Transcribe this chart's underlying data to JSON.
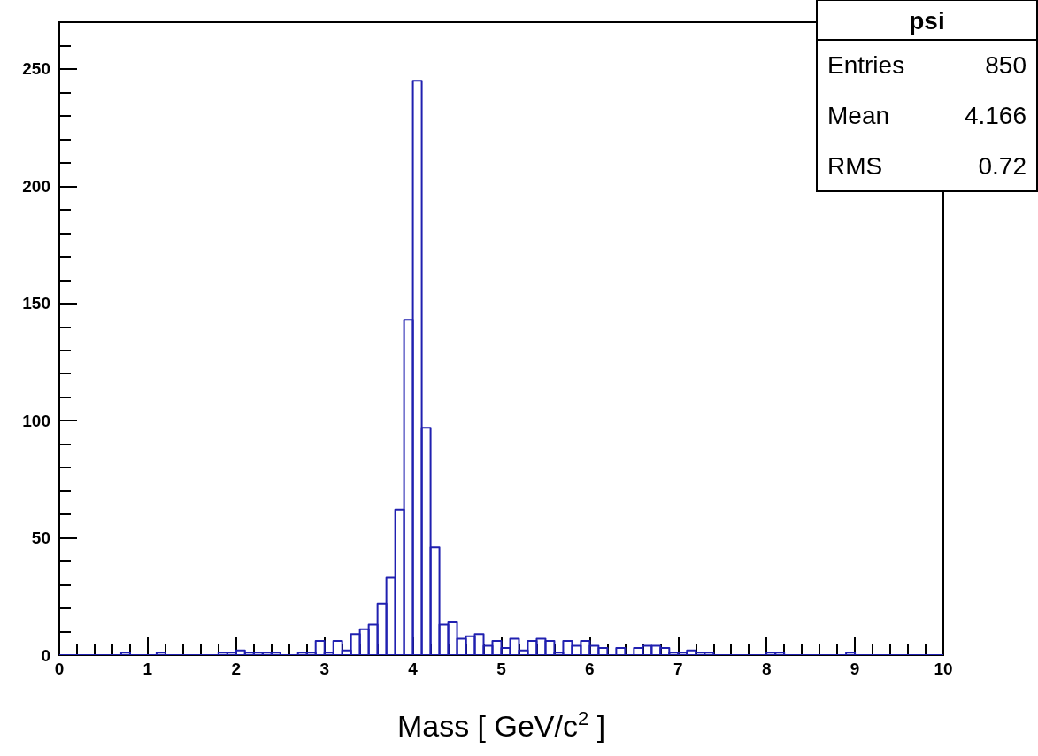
{
  "chart_data": {
    "type": "histogram",
    "xlabel": "Mass [ GeV/c$^{2}$ ]",
    "bins": [
      0,
      0.1,
      0.2,
      0.3,
      0.4,
      0.5,
      0.6,
      0.7,
      0.8,
      0.9,
      1,
      1.1,
      1.2,
      1.3,
      1.4,
      1.5,
      1.6,
      1.7,
      1.8,
      1.9,
      2,
      2.1,
      2.2,
      2.3,
      2.4,
      2.5,
      2.6,
      2.7,
      2.8,
      2.9,
      3,
      3.1,
      3.2,
      3.3,
      3.4,
      3.5,
      3.6,
      3.7,
      3.8,
      3.9,
      4,
      4.1,
      4.2,
      4.3,
      4.4,
      4.5,
      4.6,
      4.7,
      4.8,
      4.9,
      5,
      5.1,
      5.2,
      5.3,
      5.4,
      5.5,
      5.6,
      5.7,
      5.8,
      5.9,
      6,
      6.1,
      6.2,
      6.3,
      6.4,
      6.5,
      6.6,
      6.7,
      6.8,
      6.9,
      7,
      7.1,
      7.2,
      7.3,
      7.4,
      7.5,
      7.6,
      7.7,
      7.8,
      7.9,
      8,
      8.1,
      8.2,
      8.3,
      8.4,
      8.5,
      8.6,
      8.7,
      8.8,
      8.9,
      9,
      9.1,
      9.2,
      9.3,
      9.4,
      9.5,
      9.6,
      9.7,
      9.8,
      9.9,
      10
    ],
    "values": [
      0,
      0,
      0,
      0,
      0,
      0,
      0,
      1,
      0,
      0,
      0,
      1,
      0,
      0,
      0,
      0,
      0,
      0,
      1,
      1,
      2,
      1,
      1,
      1,
      1,
      0,
      0,
      1,
      1,
      6,
      1,
      6,
      2,
      9,
      11,
      13,
      22,
      33,
      62,
      143,
      245,
      97,
      46,
      13,
      14,
      7,
      8,
      9,
      4,
      6,
      3,
      7,
      2,
      6,
      7,
      6,
      1,
      6,
      4,
      6,
      4,
      3,
      0,
      3,
      0,
      3,
      4,
      4,
      3,
      1,
      1,
      2,
      1,
      1,
      0,
      0,
      0,
      0,
      0,
      0,
      1,
      1,
      0,
      0,
      0,
      0,
      0,
      0,
      0,
      1,
      0,
      0,
      0,
      0,
      0,
      0,
      0,
      0,
      0,
      0
    ],
    "color": "#2020b0",
    "xlim": [
      0,
      10
    ],
    "xticks": [
      0,
      {
        "value": 0.2,
        "label": null
      },
      {
        "value": 0.4,
        "label": null
      },
      {
        "value": 0.6,
        "label": null
      },
      {
        "value": 0.8,
        "label": null
      },
      1,
      {
        "value": 1.2,
        "label": null
      },
      {
        "value": 1.4,
        "label": null
      },
      {
        "value": 1.6,
        "label": null
      },
      {
        "value": 1.8,
        "label": null
      },
      2,
      {
        "value": 2.2,
        "label": null
      },
      {
        "value": 2.4,
        "label": null
      },
      {
        "value": 2.6,
        "label": null
      },
      {
        "value": 2.8,
        "label": null
      },
      3,
      {
        "value": 3.2,
        "label": null
      },
      {
        "value": 3.4,
        "label": null
      },
      {
        "value": 3.6,
        "label": null
      },
      {
        "value": 3.8,
        "label": null
      },
      4,
      {
        "value": 4.2,
        "label": null
      },
      {
        "value": 4.4,
        "label": null
      },
      {
        "value": 4.6,
        "label": null
      },
      {
        "value": 4.8,
        "label": null
      },
      5,
      {
        "value": 5.2,
        "label": null
      },
      {
        "value": 5.4,
        "label": null
      },
      {
        "value": 5.6,
        "label": null
      },
      {
        "value": 5.8,
        "label": null
      },
      6,
      {
        "value": 6.2,
        "label": null
      },
      {
        "value": 6.4,
        "label": null
      },
      {
        "value": 6.6,
        "label": null
      },
      {
        "value": 6.8,
        "label": null
      },
      7,
      {
        "value": 7.2,
        "label": null
      },
      {
        "value": 7.4,
        "label": null
      },
      {
        "value": 7.6,
        "label": null
      },
      {
        "value": 7.8,
        "label": null
      },
      8,
      {
        "value": 8.2,
        "label": null
      },
      {
        "value": 8.4,
        "label": null
      },
      {
        "value": 8.6,
        "label": null
      },
      {
        "value": 8.8,
        "label": null
      },
      9,
      {
        "value": 9.2,
        "label": null
      },
      {
        "value": 9.4,
        "label": null
      },
      {
        "value": 9.6,
        "label": null
      },
      {
        "value": 9.8,
        "label": null
      },
      10
    ],
    "ylim": [
      0,
      270
    ],
    "yticks": [
      0,
      {
        "value": 10,
        "label": null
      },
      {
        "value": 20,
        "label": null
      },
      {
        "value": 30,
        "label": null
      },
      {
        "value": 40,
        "label": null
      },
      50,
      {
        "value": 60,
        "label": null
      },
      {
        "value": 70,
        "label": null
      },
      {
        "value": 80,
        "label": null
      },
      {
        "value": 90,
        "label": null
      },
      100,
      {
        "value": 110,
        "label": null
      },
      {
        "value": 120,
        "label": null
      },
      {
        "value": 130,
        "label": null
      },
      {
        "value": 140,
        "label": null
      },
      150,
      {
        "value": 160,
        "label": null
      },
      {
        "value": 170,
        "label": null
      },
      {
        "value": 180,
        "label": null
      },
      {
        "value": 190,
        "label": null
      },
      200,
      {
        "value": 210,
        "label": null
      },
      {
        "value": 220,
        "label": null
      },
      {
        "value": 230,
        "label": null
      },
      {
        "value": 240,
        "label": null
      },
      250,
      {
        "value": 260,
        "label": null
      }
    ],
    "grid": false,
    "annotations": [
      "psi",
      "Entries",
      "850",
      "Mean",
      "4.166",
      "RMS",
      "0.72"
    ]
  }
}
